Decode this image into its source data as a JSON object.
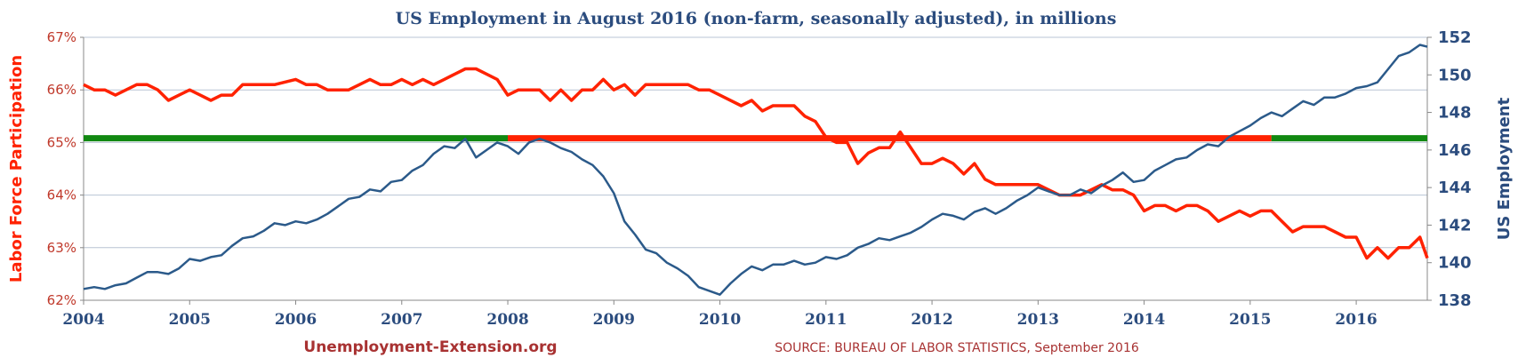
{
  "chart_data": {
    "type": "line",
    "title": "US Employment in August 2016 (non-farm, seasonally adjusted), in millions",
    "left_axis_label": "Labor Force Participation",
    "right_axis_label": "US Employment",
    "x_ticks": [
      "2004",
      "2005",
      "2006",
      "2007",
      "2008",
      "2009",
      "2010",
      "2011",
      "2012",
      "2013",
      "2014",
      "2015",
      "2016"
    ],
    "left_ticks": [
      "62%",
      "63%",
      "64%",
      "65%",
      "66%",
      "67%"
    ],
    "right_ticks": [
      "138",
      "140",
      "142",
      "144",
      "146",
      "148",
      "150",
      "152"
    ],
    "xlim": [
      2004.0,
      2016.67
    ],
    "left_ylim": [
      62,
      67
    ],
    "right_ylim": [
      138,
      152
    ],
    "grid": true,
    "colors": {
      "participation": "#ff2200",
      "employment": "#2b5a8a",
      "reference_green": "#118811",
      "reference_red": "#ff2200",
      "title": "#2b4c7e",
      "left_axis": "#ff2200",
      "right_axis": "#2b4c7e",
      "credit": "#a83232",
      "source": "#a83232",
      "grid": "#b8c4d4",
      "left_tick_text": "#c0392b"
    },
    "reference_line": {
      "value": 65.08,
      "segments": [
        {
          "x": [
            2004.0,
            2008.0
          ],
          "color": "green"
        },
        {
          "x": [
            2008.0,
            2015.2
          ],
          "color": "red"
        },
        {
          "x": [
            2015.2,
            2016.67
          ],
          "color": "green"
        }
      ]
    },
    "series": [
      {
        "axis": "left",
        "points": [
          [
            2004.0,
            66.1
          ],
          [
            2004.1,
            66.0
          ],
          [
            2004.2,
            66.0
          ],
          [
            2004.3,
            65.9
          ],
          [
            2004.4,
            66.0
          ],
          [
            2004.5,
            66.1
          ],
          [
            2004.6,
            66.1
          ],
          [
            2004.7,
            66.0
          ],
          [
            2004.8,
            65.8
          ],
          [
            2004.9,
            65.9
          ],
          [
            2005.0,
            66.0
          ],
          [
            2005.1,
            65.9
          ],
          [
            2005.2,
            65.8
          ],
          [
            2005.3,
            65.9
          ],
          [
            2005.4,
            65.9
          ],
          [
            2005.5,
            66.1
          ],
          [
            2005.6,
            66.1
          ],
          [
            2005.8,
            66.1
          ],
          [
            2006.0,
            66.2
          ],
          [
            2006.1,
            66.1
          ],
          [
            2006.2,
            66.1
          ],
          [
            2006.3,
            66.0
          ],
          [
            2006.5,
            66.0
          ],
          [
            2006.6,
            66.1
          ],
          [
            2006.7,
            66.2
          ],
          [
            2006.8,
            66.1
          ],
          [
            2006.9,
            66.1
          ],
          [
            2007.0,
            66.2
          ],
          [
            2007.1,
            66.1
          ],
          [
            2007.2,
            66.2
          ],
          [
            2007.3,
            66.1
          ],
          [
            2007.4,
            66.2
          ],
          [
            2007.5,
            66.3
          ],
          [
            2007.6,
            66.4
          ],
          [
            2007.7,
            66.4
          ],
          [
            2007.8,
            66.3
          ],
          [
            2007.9,
            66.2
          ],
          [
            2008.0,
            65.9
          ],
          [
            2008.1,
            66.0
          ],
          [
            2008.2,
            66.0
          ],
          [
            2008.3,
            66.0
          ],
          [
            2008.4,
            65.8
          ],
          [
            2008.5,
            66.0
          ],
          [
            2008.6,
            65.8
          ],
          [
            2008.7,
            66.0
          ],
          [
            2008.8,
            66.0
          ],
          [
            2008.9,
            66.2
          ],
          [
            2009.0,
            66.0
          ],
          [
            2009.1,
            66.1
          ],
          [
            2009.2,
            65.9
          ],
          [
            2009.3,
            66.1
          ],
          [
            2009.4,
            66.1
          ],
          [
            2009.6,
            66.1
          ],
          [
            2009.7,
            66.1
          ],
          [
            2009.8,
            66.0
          ],
          [
            2009.9,
            66.0
          ],
          [
            2010.0,
            65.9
          ],
          [
            2010.2,
            65.7
          ],
          [
            2010.3,
            65.8
          ],
          [
            2010.4,
            65.6
          ],
          [
            2010.5,
            65.7
          ],
          [
            2010.7,
            65.7
          ],
          [
            2010.8,
            65.5
          ],
          [
            2010.9,
            65.4
          ],
          [
            2011.0,
            65.1
          ],
          [
            2011.1,
            65.0
          ],
          [
            2011.2,
            65.0
          ],
          [
            2011.3,
            64.6
          ],
          [
            2011.4,
            64.8
          ],
          [
            2011.5,
            64.9
          ],
          [
            2011.6,
            64.9
          ],
          [
            2011.7,
            65.2
          ],
          [
            2011.8,
            64.9
          ],
          [
            2011.9,
            64.6
          ],
          [
            2012.0,
            64.6
          ],
          [
            2012.1,
            64.7
          ],
          [
            2012.2,
            64.6
          ],
          [
            2012.3,
            64.4
          ],
          [
            2012.4,
            64.6
          ],
          [
            2012.5,
            64.3
          ],
          [
            2012.6,
            64.2
          ],
          [
            2012.8,
            64.2
          ],
          [
            2013.0,
            64.2
          ],
          [
            2013.2,
            64.0
          ],
          [
            2013.4,
            64.0
          ],
          [
            2013.6,
            64.2
          ],
          [
            2013.7,
            64.1
          ],
          [
            2013.8,
            64.1
          ],
          [
            2013.9,
            64.0
          ],
          [
            2014.0,
            63.7
          ],
          [
            2014.1,
            63.8
          ],
          [
            2014.2,
            63.8
          ],
          [
            2014.3,
            63.7
          ],
          [
            2014.4,
            63.8
          ],
          [
            2014.5,
            63.8
          ],
          [
            2014.6,
            63.7
          ],
          [
            2014.7,
            63.5
          ],
          [
            2014.8,
            63.6
          ],
          [
            2014.9,
            63.7
          ],
          [
            2015.0,
            63.6
          ],
          [
            2015.1,
            63.7
          ],
          [
            2015.2,
            63.7
          ],
          [
            2015.3,
            63.5
          ],
          [
            2015.4,
            63.3
          ],
          [
            2015.5,
            63.4
          ],
          [
            2015.6,
            63.4
          ],
          [
            2015.7,
            63.4
          ],
          [
            2015.8,
            63.3
          ],
          [
            2015.9,
            63.2
          ],
          [
            2016.0,
            63.2
          ],
          [
            2016.1,
            62.8
          ],
          [
            2016.2,
            63.0
          ],
          [
            2016.3,
            62.8
          ],
          [
            2016.4,
            63.0
          ],
          [
            2016.5,
            63.0
          ],
          [
            2016.6,
            63.2
          ],
          [
            2016.67,
            62.8
          ]
        ]
      },
      {
        "axis": "right",
        "points": [
          [
            2004.0,
            138.6
          ],
          [
            2004.1,
            138.7
          ],
          [
            2004.2,
            138.6
          ],
          [
            2004.3,
            138.8
          ],
          [
            2004.4,
            138.9
          ],
          [
            2004.5,
            139.2
          ],
          [
            2004.6,
            139.5
          ],
          [
            2004.7,
            139.5
          ],
          [
            2004.8,
            139.4
          ],
          [
            2004.9,
            139.7
          ],
          [
            2005.0,
            140.2
          ],
          [
            2005.1,
            140.1
          ],
          [
            2005.2,
            140.3
          ],
          [
            2005.3,
            140.4
          ],
          [
            2005.4,
            140.9
          ],
          [
            2005.5,
            141.3
          ],
          [
            2005.6,
            141.4
          ],
          [
            2005.7,
            141.7
          ],
          [
            2005.8,
            142.1
          ],
          [
            2005.9,
            142.0
          ],
          [
            2006.0,
            142.2
          ],
          [
            2006.1,
            142.1
          ],
          [
            2006.2,
            142.3
          ],
          [
            2006.3,
            142.6
          ],
          [
            2006.4,
            143.0
          ],
          [
            2006.5,
            143.4
          ],
          [
            2006.6,
            143.5
          ],
          [
            2006.7,
            143.9
          ],
          [
            2006.8,
            143.8
          ],
          [
            2006.9,
            144.3
          ],
          [
            2007.0,
            144.4
          ],
          [
            2007.1,
            144.9
          ],
          [
            2007.2,
            145.2
          ],
          [
            2007.3,
            145.8
          ],
          [
            2007.4,
            146.2
          ],
          [
            2007.5,
            146.1
          ],
          [
            2007.6,
            146.6
          ],
          [
            2007.7,
            145.6
          ],
          [
            2007.8,
            146.0
          ],
          [
            2007.9,
            146.4
          ],
          [
            2008.0,
            146.2
          ],
          [
            2008.1,
            145.8
          ],
          [
            2008.2,
            146.4
          ],
          [
            2008.3,
            146.6
          ],
          [
            2008.4,
            146.4
          ],
          [
            2008.5,
            146.1
          ],
          [
            2008.6,
            145.9
          ],
          [
            2008.7,
            145.5
          ],
          [
            2008.8,
            145.2
          ],
          [
            2008.9,
            144.6
          ],
          [
            2009.0,
            143.7
          ],
          [
            2009.1,
            142.2
          ],
          [
            2009.2,
            141.5
          ],
          [
            2009.3,
            140.7
          ],
          [
            2009.4,
            140.5
          ],
          [
            2009.5,
            140.0
          ],
          [
            2009.6,
            139.7
          ],
          [
            2009.7,
            139.3
          ],
          [
            2009.8,
            138.7
          ],
          [
            2009.9,
            138.5
          ],
          [
            2010.0,
            138.3
          ],
          [
            2010.1,
            138.9
          ],
          [
            2010.2,
            139.4
          ],
          [
            2010.3,
            139.8
          ],
          [
            2010.4,
            139.6
          ],
          [
            2010.5,
            139.9
          ],
          [
            2010.6,
            139.9
          ],
          [
            2010.7,
            140.1
          ],
          [
            2010.8,
            139.9
          ],
          [
            2010.9,
            140.0
          ],
          [
            2011.0,
            140.3
          ],
          [
            2011.1,
            140.2
          ],
          [
            2011.2,
            140.4
          ],
          [
            2011.3,
            140.8
          ],
          [
            2011.4,
            141.0
          ],
          [
            2011.5,
            141.3
          ],
          [
            2011.6,
            141.2
          ],
          [
            2011.7,
            141.4
          ],
          [
            2011.8,
            141.6
          ],
          [
            2011.9,
            141.9
          ],
          [
            2012.0,
            142.3
          ],
          [
            2012.1,
            142.6
          ],
          [
            2012.2,
            142.5
          ],
          [
            2012.3,
            142.3
          ],
          [
            2012.4,
            142.7
          ],
          [
            2012.5,
            142.9
          ],
          [
            2012.6,
            142.6
          ],
          [
            2012.7,
            142.9
          ],
          [
            2012.8,
            143.3
          ],
          [
            2012.9,
            143.6
          ],
          [
            2013.0,
            144.0
          ],
          [
            2013.1,
            143.8
          ],
          [
            2013.2,
            143.6
          ],
          [
            2013.3,
            143.6
          ],
          [
            2013.4,
            143.9
          ],
          [
            2013.5,
            143.7
          ],
          [
            2013.6,
            144.1
          ],
          [
            2013.7,
            144.4
          ],
          [
            2013.8,
            144.8
          ],
          [
            2013.9,
            144.3
          ],
          [
            2014.0,
            144.4
          ],
          [
            2014.1,
            144.9
          ],
          [
            2014.2,
            145.2
          ],
          [
            2014.3,
            145.5
          ],
          [
            2014.4,
            145.6
          ],
          [
            2014.5,
            146.0
          ],
          [
            2014.6,
            146.3
          ],
          [
            2014.7,
            146.2
          ],
          [
            2014.8,
            146.7
          ],
          [
            2014.9,
            147.0
          ],
          [
            2015.0,
            147.3
          ],
          [
            2015.1,
            147.7
          ],
          [
            2015.2,
            148.0
          ],
          [
            2015.3,
            147.8
          ],
          [
            2015.4,
            148.2
          ],
          [
            2015.5,
            148.6
          ],
          [
            2015.6,
            148.4
          ],
          [
            2015.7,
            148.8
          ],
          [
            2015.8,
            148.8
          ],
          [
            2015.9,
            149.0
          ],
          [
            2016.0,
            149.3
          ],
          [
            2016.1,
            149.4
          ],
          [
            2016.2,
            149.6
          ],
          [
            2016.3,
            150.3
          ],
          [
            2016.4,
            151.0
          ],
          [
            2016.5,
            151.2
          ],
          [
            2016.6,
            151.6
          ],
          [
            2016.67,
            151.5
          ]
        ]
      }
    ],
    "credit": "Unemployment-Extension.org",
    "source": "SOURCE: BUREAU OF LABOR STATISTICS, September 2016"
  }
}
